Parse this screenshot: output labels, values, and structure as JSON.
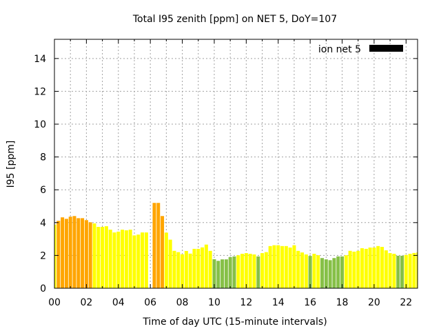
{
  "chart_data": {
    "type": "bar",
    "title": "Total I95 zenith [ppm] on NET 5, DoY=107",
    "xlabel": "Time of day UTC (15-minute intervals)",
    "ylabel": "I95 [ppm]",
    "xlim": [
      0,
      22.72
    ],
    "ylim": [
      0,
      15.17
    ],
    "x_unit": "hours",
    "x_step": 0.25,
    "grid": true,
    "xticks": [
      0,
      2,
      4,
      6,
      8,
      10,
      12,
      14,
      16,
      18,
      20,
      22
    ],
    "xtick_labels": [
      "00",
      "02",
      "04",
      "06",
      "08",
      "10",
      "12",
      "14",
      "16",
      "18",
      "20",
      "22"
    ],
    "x_minor_step": 1,
    "yticks": [
      0,
      2,
      4,
      6,
      8,
      10,
      12,
      14
    ],
    "ytick_labels": [
      "0",
      "2",
      "4",
      "6",
      "8",
      "10",
      "12",
      "14"
    ],
    "legend": {
      "label": "ion net 5",
      "color": "#000000",
      "placement": "top-right"
    },
    "color_thresholds": [
      {
        "below": 2,
        "color": "#86c047"
      },
      {
        "below": 4,
        "color": "#ffff00"
      },
      {
        "below": 999,
        "color": "#ffa500"
      }
    ],
    "series": [
      {
        "name": "ion net 5",
        "values": [
          3.88,
          4.11,
          4.32,
          4.23,
          4.36,
          4.4,
          4.27,
          4.27,
          4.15,
          4.02,
          3.95,
          3.74,
          3.74,
          3.78,
          3.57,
          3.4,
          3.45,
          3.57,
          3.53,
          3.57,
          3.22,
          3.27,
          3.4,
          3.4,
          null,
          5.2,
          5.2,
          4.4,
          3.39,
          2.96,
          2.28,
          2.2,
          2.07,
          2.27,
          2.11,
          2.4,
          2.4,
          2.49,
          2.66,
          2.28,
          1.77,
          1.67,
          1.76,
          1.76,
          1.9,
          1.94,
          2.01,
          2.1,
          2.14,
          2.1,
          2.06,
          1.94,
          2.14,
          2.2,
          2.57,
          2.62,
          2.62,
          2.57,
          2.57,
          2.48,
          2.62,
          2.28,
          2.18,
          2.06,
          1.97,
          2.1,
          2.01,
          1.84,
          1.76,
          1.71,
          1.84,
          1.94,
          1.94,
          2.01,
          2.28,
          2.23,
          2.28,
          2.44,
          2.4,
          2.48,
          2.48,
          2.57,
          2.52,
          2.31,
          2.14,
          2.1,
          1.98,
          1.98,
          2.03,
          2.1,
          2.15,
          2.18
        ]
      }
    ]
  }
}
